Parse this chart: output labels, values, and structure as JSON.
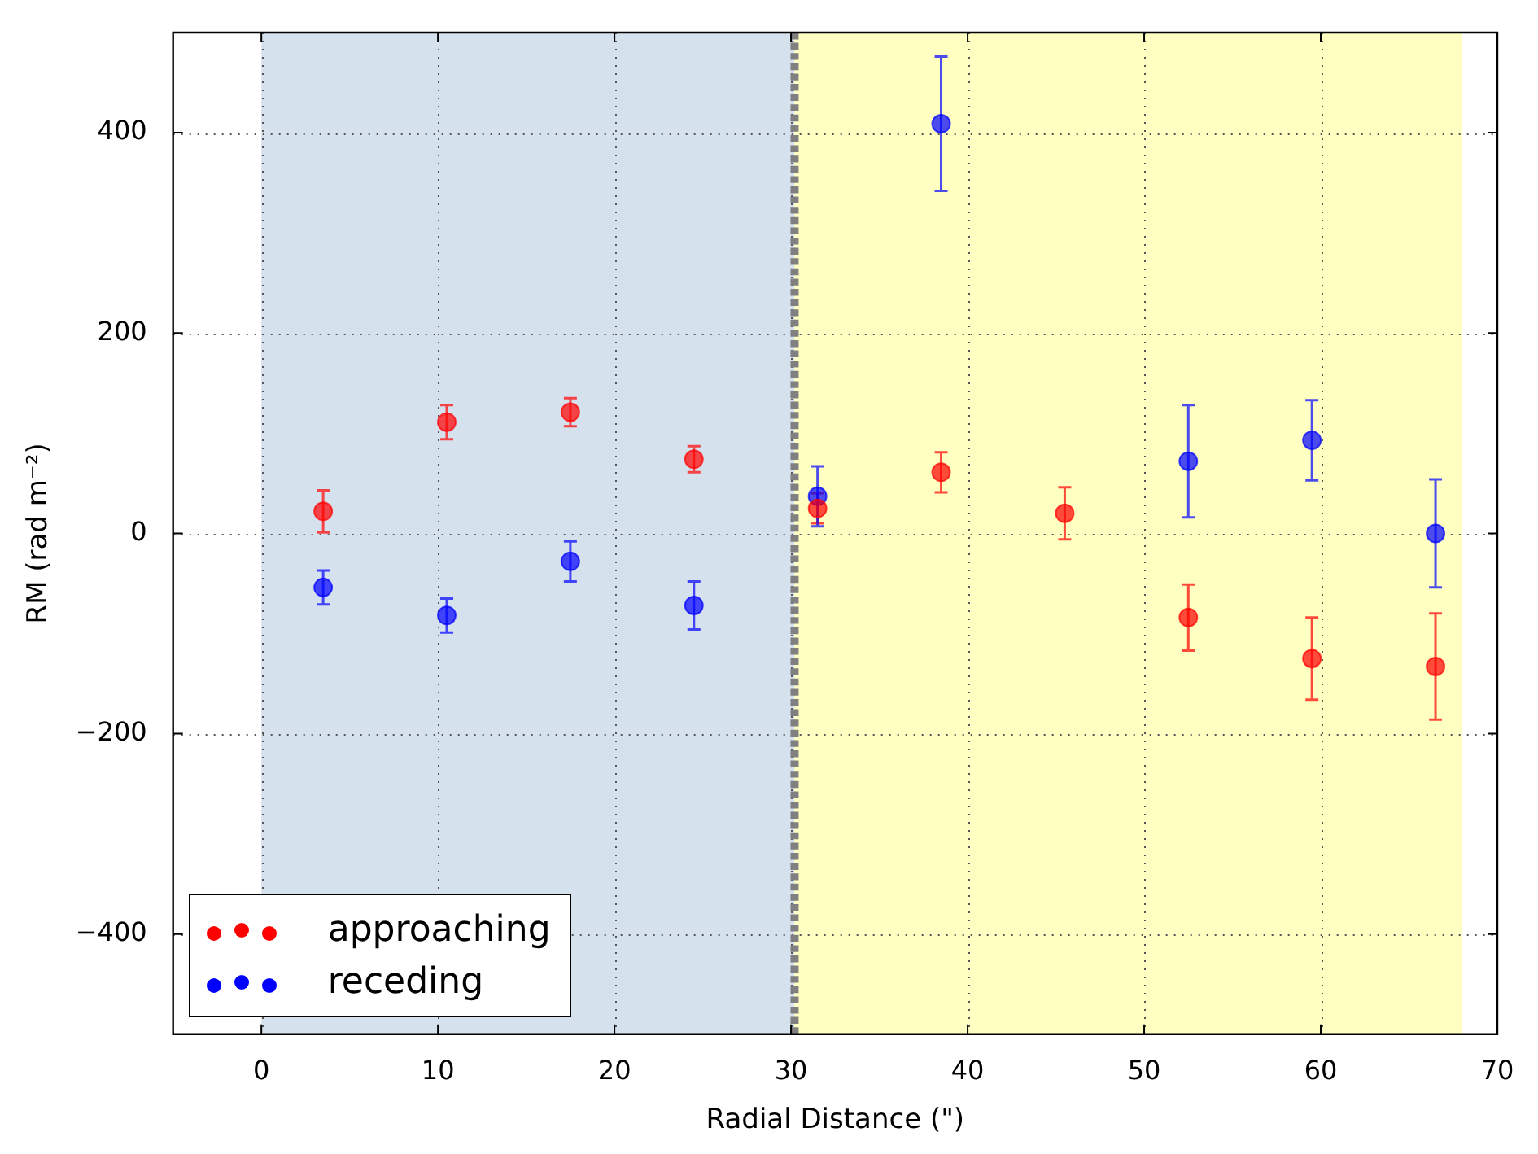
{
  "chart_data": {
    "type": "scatter",
    "xlabel": "Radial Distance (\")",
    "ylabel": "RM (rad m⁻²)",
    "x": [
      3.5,
      10.5,
      17.5,
      24.5,
      31.5,
      38.5,
      45.5,
      52.5,
      59.5,
      66.5
    ],
    "series": [
      {
        "name": "approaching",
        "color": "#ff0000",
        "values": [
          22,
          111,
          121,
          74,
          25,
          61,
          20,
          -84,
          -125,
          -133
        ],
        "errors": [
          21,
          17,
          14,
          13,
          15,
          20,
          26,
          33,
          41,
          53
        ]
      },
      {
        "name": "receding",
        "color": "#0000ff",
        "values": [
          -54,
          -82,
          -28,
          -72,
          37,
          409,
          null,
          72,
          93,
          0
        ],
        "errors": [
          17,
          17,
          20,
          24,
          30,
          67,
          null,
          56,
          40,
          54
        ]
      }
    ],
    "xlim": [
      -5,
      70
    ],
    "xticks": [
      0,
      10,
      20,
      30,
      40,
      50,
      60,
      70
    ],
    "ylim": [
      -500,
      500
    ],
    "yticks": [
      {
        "value": -400,
        "label": "−400"
      },
      {
        "value": -200,
        "label": "−200"
      },
      0,
      200,
      400
    ],
    "bands": [
      {
        "axis": "x",
        "from": 0,
        "to": 30.2,
        "color": "#d6e1ee"
      },
      {
        "axis": "x",
        "from": 30.2,
        "to": 68,
        "color": "#ffffc2"
      }
    ],
    "ref_lines": [
      {
        "axis": "x",
        "value": 30.2,
        "color": "#808080",
        "line_style": "dashed"
      }
    ],
    "grid": true,
    "legend": "bottom left",
    "marker": "circle"
  }
}
